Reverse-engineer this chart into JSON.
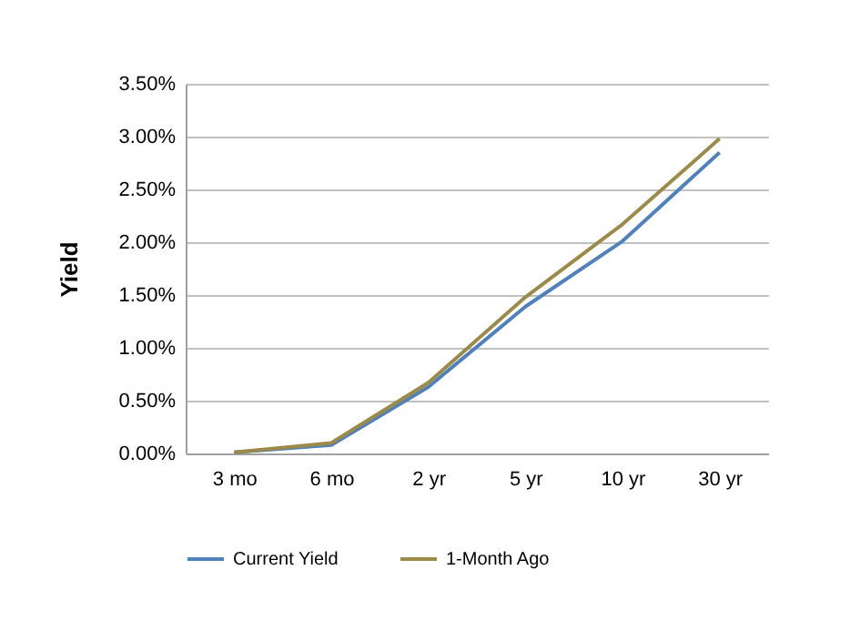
{
  "chart_data": {
    "type": "line",
    "ylabel": "Yield",
    "categories": [
      "3 mo",
      "6 mo",
      "2 yr",
      "5 yr",
      "10 yr",
      "30 yr"
    ],
    "series": [
      {
        "name": "Current Yield",
        "color": "#4f81bd",
        "values": [
          0.01,
          0.08,
          0.63,
          1.39,
          2.01,
          2.85
        ]
      },
      {
        "name": "1-Month Ago",
        "color": "#9c8a48",
        "values": [
          0.01,
          0.1,
          0.67,
          1.48,
          2.17,
          2.98
        ]
      }
    ],
    "ylim": [
      0,
      3.5
    ],
    "yticks": [
      {
        "value": 0,
        "label": "0.00%"
      },
      {
        "value": 0.5,
        "label": "0.50%"
      },
      {
        "value": 1,
        "label": "1.00%"
      },
      {
        "value": 1.5,
        "label": "1.50%"
      },
      {
        "value": 2,
        "label": "2.00%"
      },
      {
        "value": 2.5,
        "label": "2.50%"
      },
      {
        "value": 3,
        "label": "3.00%"
      },
      {
        "value": 3.5,
        "label": "3.50%"
      }
    ],
    "grid": "y",
    "legend": "bottom",
    "marker": "none",
    "line_style": "solid"
  }
}
